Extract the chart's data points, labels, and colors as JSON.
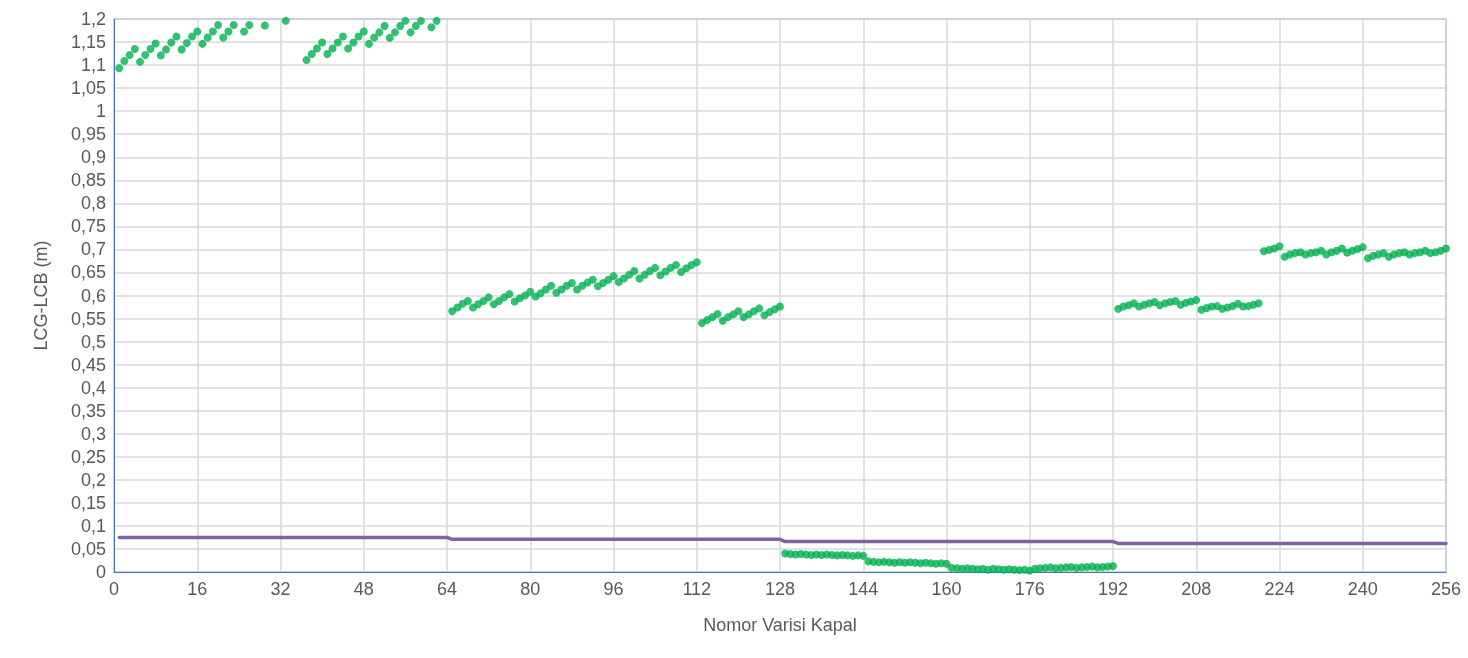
{
  "chart_data": {
    "type": "scatter",
    "xlabel": "Nomor Varisi Kapal",
    "ylabel": "LCG-LCB (m)",
    "grid": true,
    "xlim": [
      0,
      256
    ],
    "xticks": [
      0,
      16,
      32,
      48,
      64,
      80,
      96,
      112,
      128,
      144,
      160,
      176,
      192,
      208,
      224,
      240,
      256
    ],
    "ylim": [
      0,
      1.2
    ],
    "yticks": [
      0,
      {
        "value": 0.05,
        "label": "0,05"
      },
      {
        "value": 0.1,
        "label": "0,1"
      },
      {
        "value": 0.15,
        "label": "0,15"
      },
      {
        "value": 0.2,
        "label": "0,2"
      },
      {
        "value": 0.25,
        "label": "0,25"
      },
      {
        "value": 0.3,
        "label": "0,3"
      },
      {
        "value": 0.35,
        "label": "0,35"
      },
      {
        "value": 0.4,
        "label": "0,4"
      },
      {
        "value": 0.45,
        "label": "0,45"
      },
      {
        "value": 0.5,
        "label": "0,5"
      },
      {
        "value": 0.55,
        "label": "0,55"
      },
      {
        "value": 0.6,
        "label": "0,6"
      },
      {
        "value": 0.65,
        "label": "0,65"
      },
      {
        "value": 0.7,
        "label": "0,7"
      },
      {
        "value": 0.75,
        "label": "0,75"
      },
      {
        "value": 0.8,
        "label": "0,8"
      },
      {
        "value": 0.85,
        "label": "0,85"
      },
      {
        "value": 0.9,
        "label": "0,9"
      },
      {
        "value": 0.95,
        "label": "0,95"
      },
      1,
      {
        "value": 1.05,
        "label": "1,05"
      },
      {
        "value": 1.1,
        "label": "1,1"
      },
      {
        "value": 1.15,
        "label": "1,15"
      },
      {
        "value": 1.2,
        "label": "1,2"
      }
    ],
    "series": [
      {
        "type": "line",
        "color": "#8064a2",
        "marker": "none",
        "line_style": "solid",
        "x": [
          1,
          64,
          65,
          128,
          129,
          192,
          193,
          256
        ],
        "values": [
          0.075,
          0.075,
          0.071,
          0.071,
          0.066,
          0.066,
          0.062,
          0.062
        ]
      },
      {
        "color": "#00b050",
        "marker": "circle",
        "x": [
          1,
          2,
          3,
          4,
          5,
          6,
          7,
          8,
          9,
          10,
          11,
          12,
          13,
          14,
          15,
          16,
          17,
          18,
          19,
          20,
          21,
          22,
          23,
          24,
          25,
          26,
          27,
          28,
          29,
          30,
          31,
          32,
          33,
          34,
          35,
          36,
          37,
          38,
          39,
          40,
          41,
          42,
          43,
          44,
          45,
          46,
          47,
          48,
          49,
          50,
          51,
          52,
          53,
          54,
          55,
          56,
          57,
          58,
          59,
          60,
          61,
          62,
          63,
          64,
          65,
          66,
          67,
          68,
          69,
          70,
          71,
          72,
          73,
          74,
          75,
          76,
          77,
          78,
          79,
          80,
          81,
          82,
          83,
          84,
          85,
          86,
          87,
          88,
          89,
          90,
          91,
          92,
          93,
          94,
          95,
          96,
          97,
          98,
          99,
          100,
          101,
          102,
          103,
          104,
          105,
          106,
          107,
          108,
          109,
          110,
          111,
          112,
          113,
          114,
          115,
          116,
          117,
          118,
          119,
          120,
          121,
          122,
          123,
          124,
          125,
          126,
          127,
          128,
          129,
          130,
          131,
          132,
          133,
          134,
          135,
          136,
          137,
          138,
          139,
          140,
          141,
          142,
          143,
          144,
          145,
          146,
          147,
          148,
          149,
          150,
          151,
          152,
          153,
          154,
          155,
          156,
          157,
          158,
          159,
          160,
          161,
          162,
          163,
          164,
          165,
          166,
          167,
          168,
          169,
          170,
          171,
          172,
          173,
          174,
          175,
          176,
          177,
          178,
          179,
          180,
          181,
          182,
          183,
          184,
          185,
          186,
          187,
          188,
          189,
          190,
          191,
          192,
          193,
          194,
          195,
          196,
          197,
          198,
          199,
          200,
          201,
          202,
          203,
          204,
          205,
          206,
          207,
          208,
          209,
          210,
          211,
          212,
          213,
          214,
          215,
          216,
          217,
          218,
          219,
          220,
          221,
          222,
          223,
          224,
          225,
          226,
          227,
          228,
          229,
          230,
          231,
          232,
          233,
          234,
          235,
          236,
          237,
          238,
          239,
          240,
          241,
          242,
          243,
          244,
          245,
          246,
          247,
          248,
          249,
          250,
          251,
          252,
          253,
          254,
          255,
          256
        ],
        "values": [
          1.093,
          1.109,
          1.122,
          1.135,
          1.107,
          1.122,
          1.135,
          1.147,
          1.121,
          1.134,
          1.149,
          1.162,
          1.134,
          1.148,
          1.162,
          1.173,
          1.146,
          1.16,
          1.173,
          1.187,
          1.16,
          1.173,
          1.187,
          null,
          1.173,
          1.187,
          null,
          null,
          1.186,
          null,
          null,
          null,
          1.196,
          null,
          null,
          null,
          1.111,
          1.124,
          1.136,
          1.149,
          1.124,
          1.136,
          1.149,
          1.162,
          1.136,
          1.149,
          1.162,
          1.173,
          1.146,
          1.16,
          1.171,
          1.185,
          1.159,
          1.171,
          1.185,
          1.196,
          1.171,
          1.185,
          1.196,
          null,
          1.182,
          1.196,
          null,
          null,
          0.566,
          0.574,
          0.582,
          0.588,
          0.574,
          0.581,
          0.588,
          0.596,
          0.581,
          0.588,
          0.596,
          0.603,
          0.587,
          0.594,
          0.6,
          0.608,
          0.598,
          0.605,
          0.613,
          0.621,
          0.606,
          0.613,
          0.621,
          0.627,
          0.613,
          0.621,
          0.628,
          0.634,
          0.62,
          0.627,
          0.634,
          0.642,
          0.629,
          0.637,
          0.645,
          0.653,
          0.637,
          0.645,
          0.653,
          0.66,
          0.644,
          0.652,
          0.66,
          0.666,
          0.651,
          0.659,
          0.666,
          0.672,
          0.54,
          0.547,
          0.553,
          0.56,
          0.545,
          0.553,
          0.559,
          0.566,
          0.553,
          0.559,
          0.566,
          0.572,
          0.557,
          0.564,
          0.57,
          0.576,
          0.04,
          0.039,
          0.038,
          0.039,
          0.038,
          0.037,
          0.038,
          0.037,
          0.038,
          0.037,
          0.036,
          0.037,
          0.036,
          0.035,
          0.036,
          0.035,
          0.023,
          0.022,
          0.021,
          0.022,
          0.021,
          0.02,
          0.021,
          0.02,
          0.021,
          0.02,
          0.019,
          0.02,
          0.019,
          0.018,
          0.019,
          0.018,
          0.009,
          0.008,
          0.007,
          0.008,
          0.007,
          0.006,
          0.007,
          0.005,
          0.007,
          0.006,
          0.005,
          0.006,
          0.005,
          0.004,
          0.005,
          0.003,
          0.007,
          0.008,
          0.009,
          0.01,
          0.008,
          0.009,
          0.01,
          0.011,
          0.009,
          0.01,
          0.011,
          0.012,
          0.01,
          0.011,
          0.012,
          0.013,
          0.571,
          0.576,
          0.579,
          0.583,
          0.576,
          0.58,
          0.583,
          0.586,
          0.579,
          0.583,
          0.586,
          0.588,
          0.58,
          0.584,
          0.587,
          0.59,
          0.569,
          0.573,
          0.576,
          0.577,
          0.571,
          0.574,
          0.577,
          0.582,
          0.576,
          0.577,
          0.58,
          0.583,
          0.696,
          0.699,
          0.702,
          0.707,
          0.684,
          0.689,
          0.692,
          0.694,
          0.689,
          0.692,
          0.694,
          0.697,
          0.689,
          0.694,
          0.697,
          0.702,
          0.693,
          0.697,
          0.701,
          0.705,
          0.681,
          0.686,
          0.689,
          0.692,
          0.684,
          0.689,
          0.692,
          0.694,
          0.689,
          0.692,
          0.694,
          0.697,
          0.692,
          0.694,
          0.697,
          0.702
        ]
      }
    ]
  }
}
